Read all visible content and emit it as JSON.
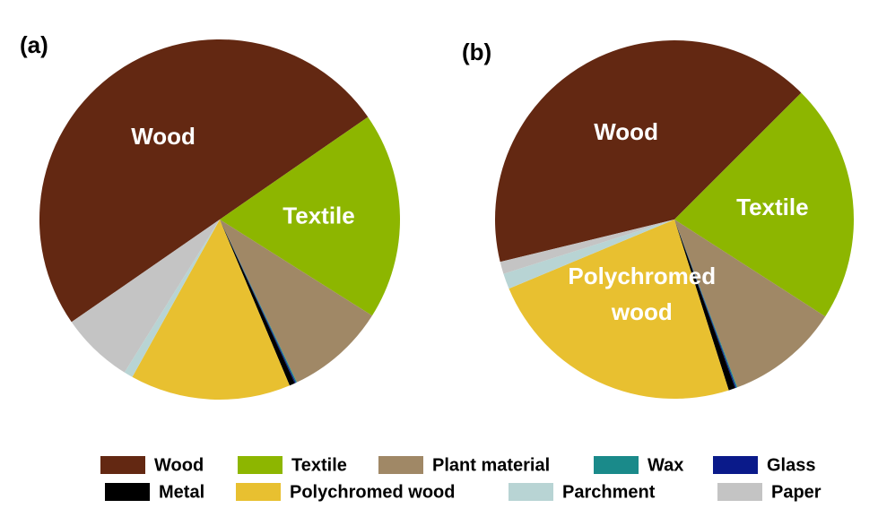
{
  "chart_data": [
    {
      "type": "pie",
      "title": "(a)",
      "categories": [
        "Wood",
        "Textile",
        "Plant material",
        "Wax",
        "Glass",
        "Metal",
        "Polychromed wood",
        "Parchment",
        "Paper"
      ],
      "values": [
        50,
        18.6,
        9,
        0.1,
        0.1,
        0.5,
        14.4,
        0.8,
        6.5
      ],
      "colors": [
        "#632812",
        "#8db600",
        "#a08866",
        "#1a8a8a",
        "#0a1a8a",
        "#000000",
        "#e8c030",
        "#b8d4d4",
        "#c4c4c4"
      ]
    },
    {
      "type": "pie",
      "title": "(b)",
      "categories": [
        "Wood",
        "Textile",
        "Plant material",
        "Wax",
        "Glass",
        "Metal",
        "Polychromed wood",
        "Parchment",
        "Paper"
      ],
      "values": [
        41.3,
        21.6,
        10.2,
        0.1,
        0.1,
        0.6,
        23.6,
        1.4,
        1.1
      ],
      "colors": [
        "#632812",
        "#8db600",
        "#a08866",
        "#1a8a8a",
        "#0a1a8a",
        "#000000",
        "#e8c030",
        "#b8d4d4",
        "#c4c4c4"
      ]
    }
  ]
}
